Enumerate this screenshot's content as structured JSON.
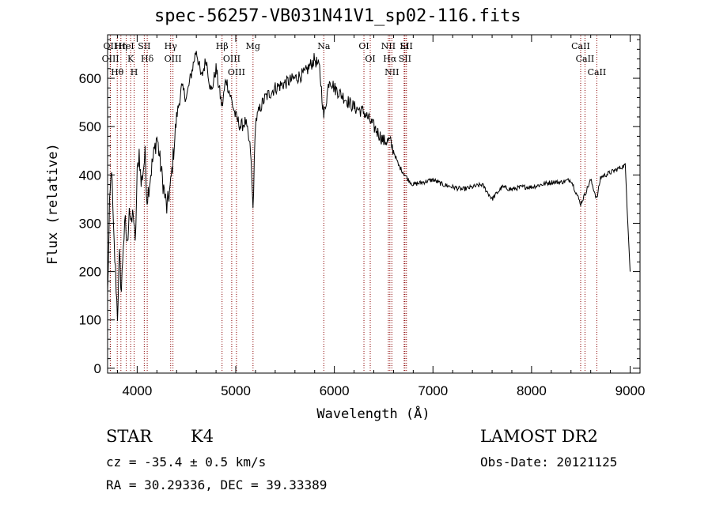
{
  "chart_data": {
    "type": "line",
    "title": "spec-56257-VB031N41V1_sp02-116.fits",
    "xlabel": "Wavelength (Å)",
    "ylabel": "Flux (relative)",
    "xlim": [
      3700,
      9100
    ],
    "ylim": [
      -10,
      690
    ],
    "xticks": [
      4000,
      5000,
      6000,
      7000,
      8000,
      9000
    ],
    "yticks": [
      0,
      100,
      200,
      300,
      400,
      500,
      600
    ],
    "grid": false,
    "line_color": "#000000",
    "marker_color": "#8b0000",
    "spectrum": {
      "x": [
        3700,
        3720,
        3740,
        3760,
        3780,
        3800,
        3820,
        3840,
        3860,
        3880,
        3900,
        3920,
        3940,
        3960,
        3980,
        4000,
        4020,
        4040,
        4060,
        4080,
        4100,
        4150,
        4200,
        4250,
        4300,
        4340,
        4400,
        4450,
        4500,
        4550,
        4600,
        4650,
        4700,
        4750,
        4800,
        4861,
        4900,
        4950,
        5000,
        5050,
        5100,
        5150,
        5175,
        5200,
        5250,
        5300,
        5400,
        5500,
        5600,
        5700,
        5800,
        5850,
        5893,
        5950,
        6000,
        6100,
        6200,
        6300,
        6400,
        6500,
        6563,
        6600,
        6650,
        6700,
        6750,
        6800,
        6900,
        7000,
        7100,
        7200,
        7300,
        7400,
        7500,
        7600,
        7700,
        7800,
        7900,
        8000,
        8100,
        8200,
        8300,
        8400,
        8498,
        8542,
        8600,
        8662,
        8700,
        8800,
        8900,
        8950,
        9000
      ],
      "y": [
        150,
        330,
        420,
        280,
        200,
        110,
        230,
        160,
        260,
        300,
        250,
        340,
        290,
        330,
        250,
        400,
        450,
        380,
        410,
        440,
        350,
        420,
        480,
        400,
        330,
        380,
        520,
        580,
        560,
        610,
        660,
        600,
        640,
        570,
        620,
        540,
        600,
        560,
        520,
        500,
        510,
        450,
        330,
        510,
        540,
        560,
        580,
        590,
        600,
        610,
        640,
        620,
        520,
        600,
        580,
        560,
        540,
        530,
        500,
        470,
        470,
        450,
        420,
        405,
        390,
        380,
        385,
        390,
        380,
        375,
        370,
        375,
        380,
        350,
        375,
        370,
        375,
        375,
        380,
        385,
        385,
        390,
        340,
        360,
        390,
        350,
        395,
        405,
        415,
        420,
        200
      ]
    },
    "line_markers": [
      {
        "label": "Hθ",
        "x": 3798
      },
      {
        "label": "OII",
        "x": 3727
      },
      {
        "label": "OIII",
        "x": 3729
      },
      {
        "label": "Hη",
        "x": 3835
      },
      {
        "label": "HeI",
        "x": 3889
      },
      {
        "label": "K",
        "x": 3934
      },
      {
        "label": "H",
        "x": 3969
      },
      {
        "label": "SII",
        "x": 4072
      },
      {
        "label": "Hδ",
        "x": 4102
      },
      {
        "label": "OIII",
        "x": 4363
      },
      {
        "label": "Hγ",
        "x": 4340
      },
      {
        "label": "Hβ",
        "x": 4861
      },
      {
        "label": "OIII",
        "x": 4959
      },
      {
        "label": "OIII",
        "x": 5007
      },
      {
        "label": "Mg",
        "x": 5175
      },
      {
        "label": "Na",
        "x": 5893
      },
      {
        "label": "OI",
        "x": 6300
      },
      {
        "label": "OI",
        "x": 6364
      },
      {
        "label": "NII",
        "x": 6548
      },
      {
        "label": "Hα",
        "x": 6563
      },
      {
        "label": "NII",
        "x": 6583
      },
      {
        "label": "SII",
        "x": 6716
      },
      {
        "label": "Li",
        "x": 6708
      },
      {
        "label": "SII",
        "x": 6731
      },
      {
        "label": "CaII",
        "x": 8498
      },
      {
        "label": "CaII",
        "x": 8542
      },
      {
        "label": "CaII",
        "x": 8662
      }
    ]
  },
  "info": {
    "class": "STAR",
    "subclass": "K4",
    "survey": "LAMOST DR2",
    "cz": "cz = -35.4 ± 0.5 km/s",
    "obsdate": "Obs-Date: 20121125",
    "radec": "RA =  30.29336, DEC =  39.33389"
  }
}
